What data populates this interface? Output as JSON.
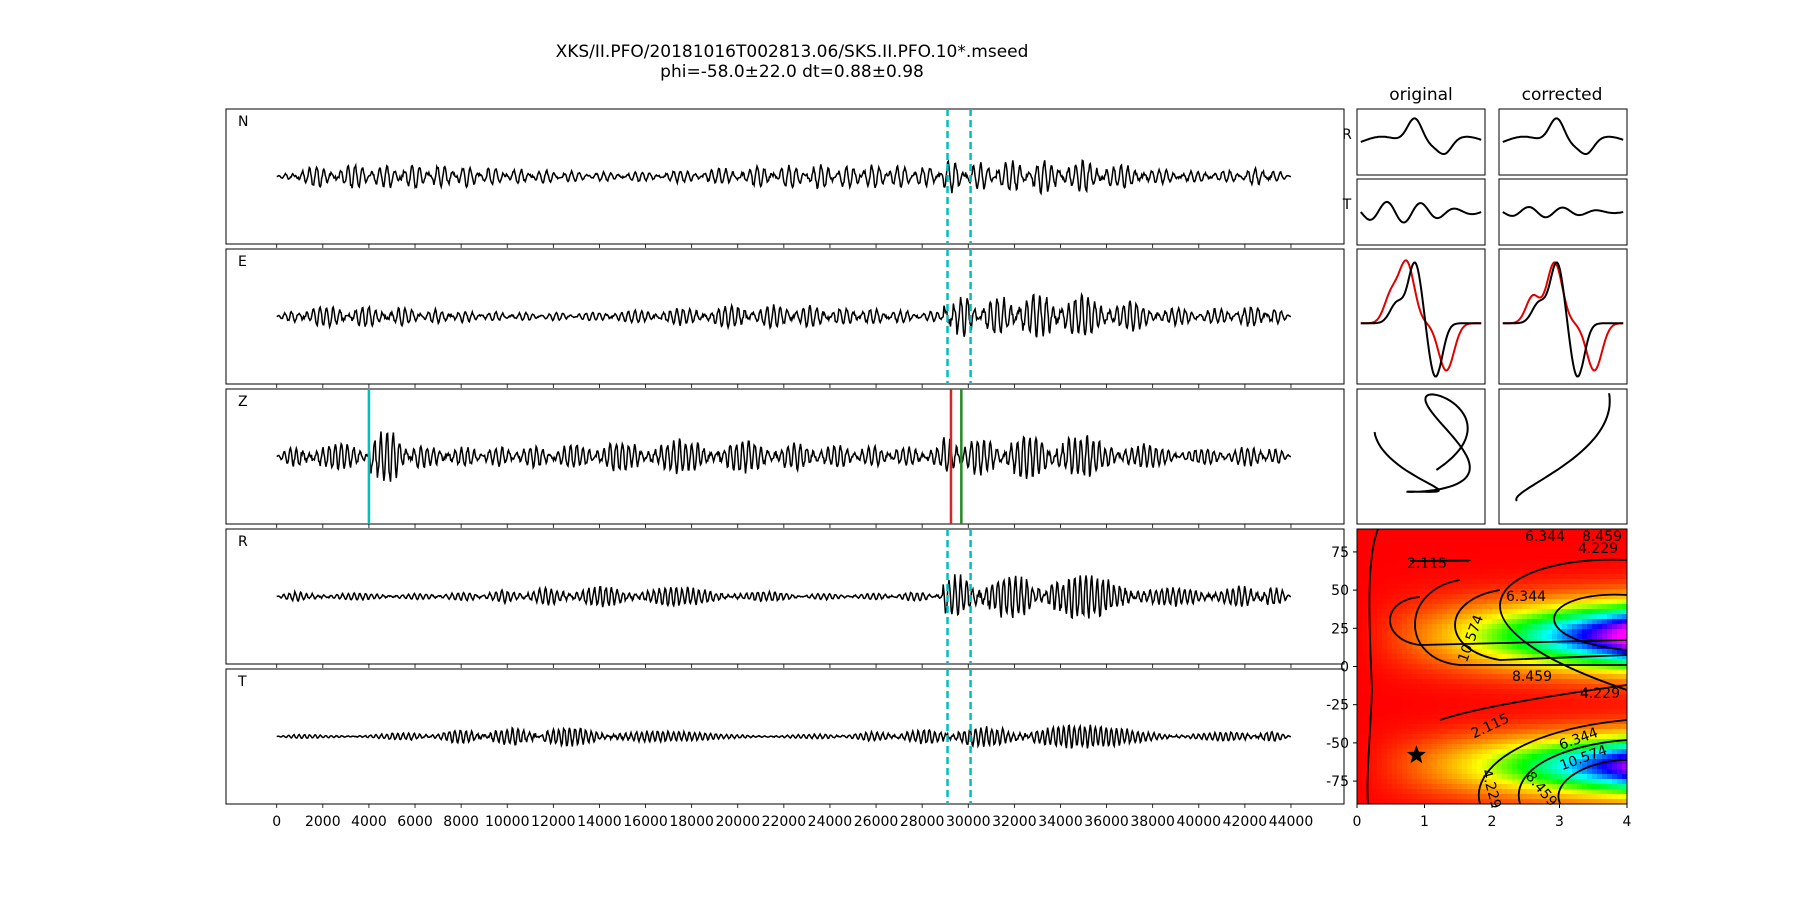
{
  "figure": {
    "title_line1": "XKS/II.PFO/20181016T002813.06/SKS.II.PFO.10*.mseed",
    "title_line2": "phi=-58.0±22.0 dt=0.88±0.98"
  },
  "chart_data": [
    {
      "type": "line",
      "name": "seismogram-panels",
      "panels": [
        "N",
        "E",
        "Z",
        "R",
        "T"
      ],
      "x_range": [
        0,
        44000
      ],
      "xlim": [
        -2200,
        46300
      ],
      "x_ticks": [
        0,
        2000,
        4000,
        6000,
        8000,
        10000,
        12000,
        14000,
        16000,
        18000,
        20000,
        22000,
        24000,
        26000,
        28000,
        30000,
        32000,
        34000,
        36000,
        38000,
        40000,
        42000,
        44000
      ],
      "window_lines": [
        29100,
        30100
      ],
      "window_line_color": "#00bfbf",
      "z_markers": [
        {
          "x": 4000,
          "color": "#00bfbf"
        },
        {
          "x": 29250,
          "color": "#d62728"
        },
        {
          "x": 29700,
          "color": "#228b22"
        }
      ],
      "onset": 28900
    },
    {
      "type": "line",
      "name": "particle-motion",
      "column_titles": [
        "original",
        "corrected"
      ],
      "row_labels": [
        "R",
        "T"
      ],
      "overlay_colors": [
        "#000000",
        "#e00000"
      ]
    },
    {
      "type": "heatmap",
      "name": "error-surface",
      "xlim": [
        0,
        4
      ],
      "ylim": [
        -90,
        90
      ],
      "x_ticks": [
        0,
        1,
        2,
        3,
        4
      ],
      "y_ticks": [
        75,
        50,
        25,
        0,
        -25,
        -50,
        -75
      ],
      "contour_levels": [
        "2.115",
        "4.229",
        "6.344",
        "8.459",
        "10.574"
      ],
      "best_fit": {
        "dt": 0.88,
        "phi": -58.0
      },
      "colormap": "gist_rainbow_r"
    }
  ]
}
